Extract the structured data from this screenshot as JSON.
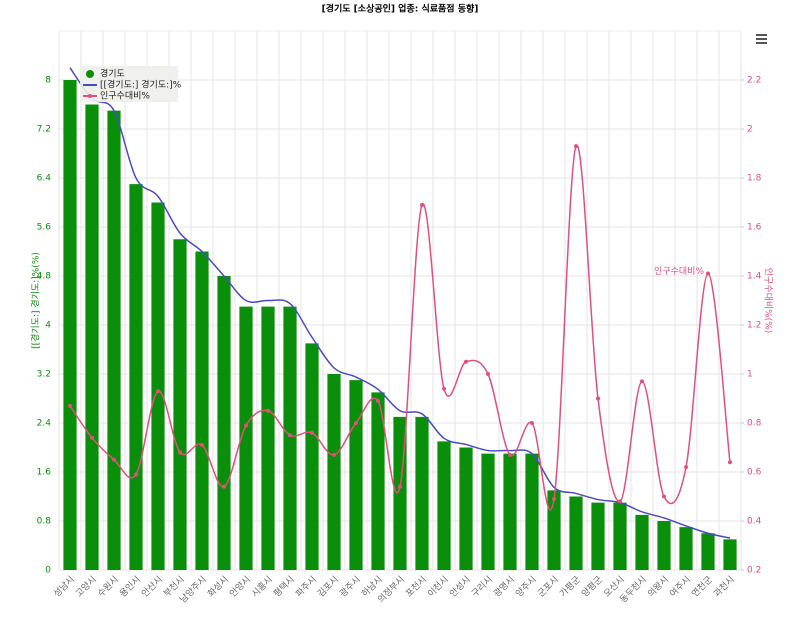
{
  "chart_data": {
    "type": "bar",
    "title": "[경기도 [소상공인] 업종: 식료품점 동향]",
    "y_label": "[[경기도:] 경기도:]%(%)",
    "y2_label": "인구수대비%(%)",
    "annotation": "인구수대비%",
    "categories": [
      "성남시",
      "고양시",
      "수원시",
      "용인시",
      "안산시",
      "부천시",
      "남양주시",
      "화성시",
      "안양시",
      "시흥시",
      "평택시",
      "파주시",
      "김포시",
      "광주시",
      "하남시",
      "의정부시",
      "포천시",
      "이천시",
      "안성시",
      "구리시",
      "광명시",
      "양주시",
      "군포시",
      "가평군",
      "양평군",
      "오산시",
      "동두천시",
      "의왕시",
      "여주시",
      "연천군",
      "과천시"
    ],
    "series": [
      {
        "name": "경기도",
        "type": "bar",
        "color": "#0a8f0a",
        "values": [
          8.0,
          7.6,
          7.5,
          6.3,
          6.0,
          5.4,
          5.2,
          4.8,
          4.3,
          4.3,
          4.3,
          3.7,
          3.2,
          3.1,
          2.9,
          2.5,
          2.5,
          2.1,
          2.0,
          1.9,
          1.9,
          1.9,
          1.3,
          1.2,
          1.1,
          1.1,
          0.9,
          0.8,
          0.7,
          0.6,
          0.5
        ]
      },
      {
        "name": "[[경기도:] 경기도:]%",
        "type": "line",
        "color": "#4b4bc0",
        "values": [
          8.2,
          7.7,
          7.5,
          6.4,
          6.1,
          5.5,
          5.2,
          4.8,
          4.4,
          4.4,
          4.35,
          3.8,
          3.3,
          3.15,
          2.95,
          2.6,
          2.55,
          2.15,
          2.05,
          1.95,
          1.95,
          1.9,
          1.35,
          1.25,
          1.15,
          1.1,
          0.95,
          0.85,
          0.72,
          0.6,
          0.52
        ]
      },
      {
        "name": "인구수대비%",
        "type": "line",
        "axis": "y2",
        "color": "#e0507a",
        "values": [
          0.87,
          0.74,
          0.65,
          0.59,
          0.93,
          0.68,
          0.71,
          0.54,
          0.79,
          0.85,
          0.75,
          0.76,
          0.67,
          0.8,
          0.89,
          0.54,
          1.69,
          0.94,
          1.05,
          1.0,
          0.67,
          0.8,
          0.49,
          1.93,
          0.9,
          0.48,
          0.97,
          0.5,
          0.62,
          1.41,
          0.64
        ]
      }
    ],
    "ylim": [
      0,
      8.8
    ],
    "yticks": [
      0,
      0.8,
      1.6,
      2.4,
      3.2,
      4,
      4.8,
      5.6,
      6.4,
      7.2,
      8
    ],
    "y2lim": [
      0.2,
      2.4
    ],
    "y2ticks": [
      0.2,
      0.4,
      0.6,
      0.8,
      1,
      1.2,
      1.4,
      1.6,
      1.8,
      2,
      2.2
    ],
    "grid": true,
    "legend": "top-left"
  }
}
